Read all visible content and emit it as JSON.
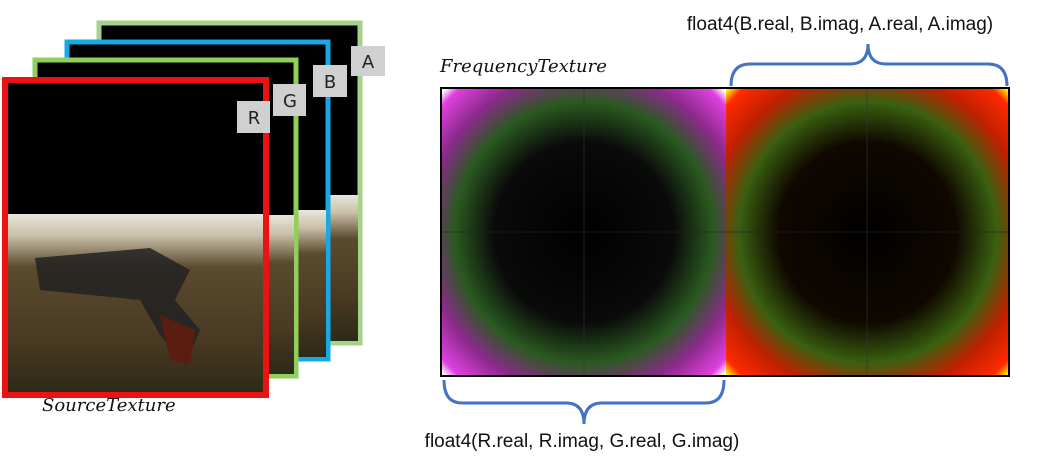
{
  "layers": [
    {
      "label": "A"
    },
    {
      "label": "B"
    },
    {
      "label": "G"
    },
    {
      "label": "R"
    }
  ],
  "source": {
    "label": "SourceTexture"
  },
  "frequency": {
    "label": "FrequencyTexture",
    "top_label": "float4(B.real, B.imag, A.real, A.imag)",
    "bottom_label": "float4(R.real, R.imag, G.real, G.imag)"
  }
}
